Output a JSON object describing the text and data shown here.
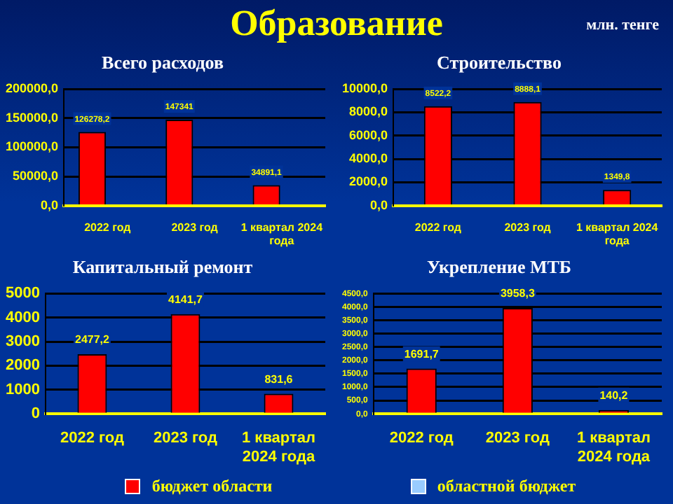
{
  "chart_data": [
    {
      "type": "bar",
      "title": "Всего расходов",
      "annotations": [
        "Образование",
        "млн. тенге"
      ],
      "categories": [
        "2022 год",
        "2023 год",
        "1 квартал 2024 года"
      ],
      "series": [
        {
          "name": "бюджет области",
          "color": "#ff0000",
          "values": [
            126278.2,
            147341,
            34891.1
          ],
          "value_labels": [
            "126278,2",
            "147341",
            "34891,1"
          ]
        },
        {
          "name": "областной бюджет",
          "color": "#99ccff",
          "values": [
            null,
            null,
            null
          ]
        }
      ],
      "ylim": [
        0,
        200000
      ],
      "yticks": [
        {
          "value": 0,
          "label": "0,0"
        },
        {
          "value": 50000,
          "label": "50000,0"
        },
        {
          "value": 100000,
          "label": "100000,0"
        },
        {
          "value": 150000,
          "label": "150000,0"
        },
        {
          "value": 200000,
          "label": "200000,0"
        }
      ],
      "grid": "y",
      "legend": "bottom"
    },
    {
      "type": "bar",
      "title": "Строительство",
      "categories": [
        "2022 год",
        "2023 год",
        "1 квартал 2024 года"
      ],
      "series": [
        {
          "color": "#ff0000",
          "values": [
            8522.2,
            8888.1,
            1349.8
          ],
          "value_labels": [
            "8522,2",
            "8888,1",
            "1349,8"
          ]
        }
      ],
      "ylim": [
        0,
        10000
      ],
      "yticks": [
        {
          "value": 0,
          "label": "0,0"
        },
        {
          "value": 2000,
          "label": "2000,0"
        },
        {
          "value": 4000,
          "label": "4000,0"
        },
        {
          "value": 6000,
          "label": "6000,0"
        },
        {
          "value": 8000,
          "label": "8000,0"
        },
        {
          "value": 10000,
          "label": "10000,0"
        }
      ],
      "grid": "y"
    },
    {
      "type": "bar",
      "title": "Капитальный ремонт",
      "categories": [
        "2022 год",
        "2023 год",
        "1 квартал 2024 года"
      ],
      "series": [
        {
          "color": "#ff0000",
          "values": [
            2477.2,
            4141.7,
            831.6
          ],
          "value_labels": [
            "2477,2",
            "4141,7",
            "831,6"
          ]
        }
      ],
      "ylim": [
        0,
        5000
      ],
      "yticks": [
        0,
        1000,
        2000,
        3000,
        4000,
        5000
      ],
      "grid": "y"
    },
    {
      "type": "bar",
      "title": "Укрепление МТБ",
      "categories": [
        "2022 год",
        "2023 год",
        "1 квартал 2024 года"
      ],
      "series": [
        {
          "color": "#ff0000",
          "values": [
            1691.7,
            3958.3,
            140.2
          ],
          "value_labels": [
            "1691,7",
            "3958,3",
            "140,2"
          ]
        }
      ],
      "ylim": [
        0,
        4500
      ],
      "yticks": [
        {
          "value": 0,
          "label": "0,0"
        },
        {
          "value": 500,
          "label": "500,0"
        },
        {
          "value": 1000,
          "label": "1000,0"
        },
        {
          "value": 1500,
          "label": "1500,0"
        },
        {
          "value": 2000,
          "label": "2000,0"
        },
        {
          "value": 2500,
          "label": "2500,0"
        },
        {
          "value": 3000,
          "label": "3000,0"
        },
        {
          "value": 3500,
          "label": "3500,0"
        },
        {
          "value": 4000,
          "label": "4000,0"
        },
        {
          "value": 4500,
          "label": "4500,0"
        }
      ],
      "grid": "y"
    }
  ]
}
